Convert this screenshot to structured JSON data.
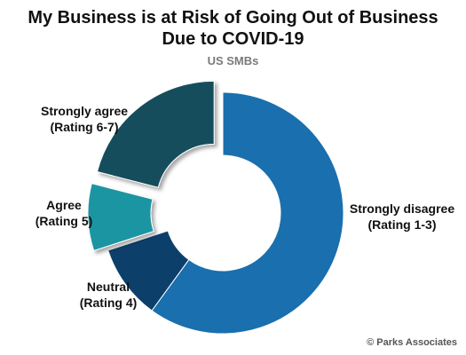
{
  "chart_data": {
    "type": "pie",
    "title": [
      "My Business is at Risk of Going Out of Business",
      "Due to COVID-19"
    ],
    "subtitle": "US SMBs",
    "donut": true,
    "categories": [
      "Strongly disagree (Rating 1-3)",
      "Neutral (Rating 4)",
      "Agree (Rating 5)",
      "Strongly agree (Rating 6-7)"
    ],
    "values": [
      60,
      10,
      9,
      21
    ],
    "exploded": [
      false,
      false,
      true,
      true
    ],
    "colors": [
      "#1a6fae",
      "#0d3f6b",
      "#1a95a3",
      "#124e5c"
    ],
    "labels": [
      {
        "line1": "Strongly disagree",
        "line2": "(Rating 1-3)"
      },
      {
        "line1": "Neutral",
        "line2": "(Rating 4)"
      },
      {
        "line1": "Agree",
        "line2": "(Rating 5)"
      },
      {
        "line1": "Strongly agree",
        "line2": "(Rating 6-7)"
      }
    ]
  },
  "footer": {
    "copyright": "© Parks Associates"
  }
}
